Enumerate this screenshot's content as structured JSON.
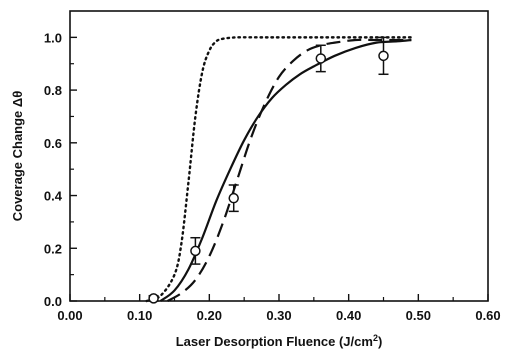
{
  "chart_data": {
    "type": "line",
    "title": "",
    "xlabel": "Laser Desorption Fluence (J/cm",
    "xlabel_superscript": "2",
    "xlabel_suffix": ")",
    "ylabel": "Coverage Change Δθ",
    "xlim": [
      0.0,
      0.6
    ],
    "ylim": [
      0.0,
      1.1
    ],
    "x_ticks": [
      "0.00",
      "0.10",
      "0.20",
      "0.30",
      "0.40",
      "0.50",
      "0.60"
    ],
    "y_ticks": [
      "0.0",
      "0.2",
      "0.4",
      "0.6",
      "0.8",
      "1.0"
    ],
    "grid": false,
    "series": [
      {
        "style": "solid",
        "color": "#111111",
        "x": [
          0.13,
          0.15,
          0.17,
          0.19,
          0.21,
          0.23,
          0.25,
          0.27,
          0.29,
          0.31,
          0.33,
          0.35,
          0.38,
          0.41,
          0.44,
          0.47,
          0.49
        ],
        "y": [
          0.0,
          0.04,
          0.12,
          0.24,
          0.38,
          0.5,
          0.61,
          0.7,
          0.77,
          0.82,
          0.86,
          0.89,
          0.93,
          0.96,
          0.98,
          0.985,
          0.99
        ]
      },
      {
        "style": "dashed",
        "color": "#111111",
        "x": [
          0.14,
          0.16,
          0.18,
          0.2,
          0.22,
          0.24,
          0.26,
          0.28,
          0.3,
          0.32,
          0.34,
          0.36,
          0.38,
          0.41,
          0.44,
          0.47,
          0.49
        ],
        "y": [
          0.0,
          0.03,
          0.08,
          0.17,
          0.3,
          0.46,
          0.62,
          0.75,
          0.85,
          0.91,
          0.95,
          0.97,
          0.98,
          0.99,
          0.99,
          0.99,
          0.99
        ]
      },
      {
        "style": "dotted",
        "color": "#111111",
        "x": [
          0.11,
          0.13,
          0.15,
          0.16,
          0.17,
          0.18,
          0.19,
          0.2,
          0.21,
          0.22,
          0.24,
          0.27,
          0.3,
          0.35,
          0.4,
          0.45,
          0.49
        ],
        "y": [
          0.0,
          0.02,
          0.1,
          0.22,
          0.45,
          0.7,
          0.87,
          0.95,
          0.985,
          0.995,
          1.0,
          1.0,
          1.0,
          1.0,
          1.0,
          1.0,
          1.0
        ]
      }
    ],
    "points": [
      {
        "x": 0.12,
        "y": 0.01,
        "err": 0.01
      },
      {
        "x": 0.18,
        "y": 0.19,
        "err": 0.05
      },
      {
        "x": 0.235,
        "y": 0.39,
        "err": 0.05
      },
      {
        "x": 0.36,
        "y": 0.92,
        "err": 0.05
      },
      {
        "x": 0.45,
        "y": 0.93,
        "err": 0.07
      }
    ]
  }
}
